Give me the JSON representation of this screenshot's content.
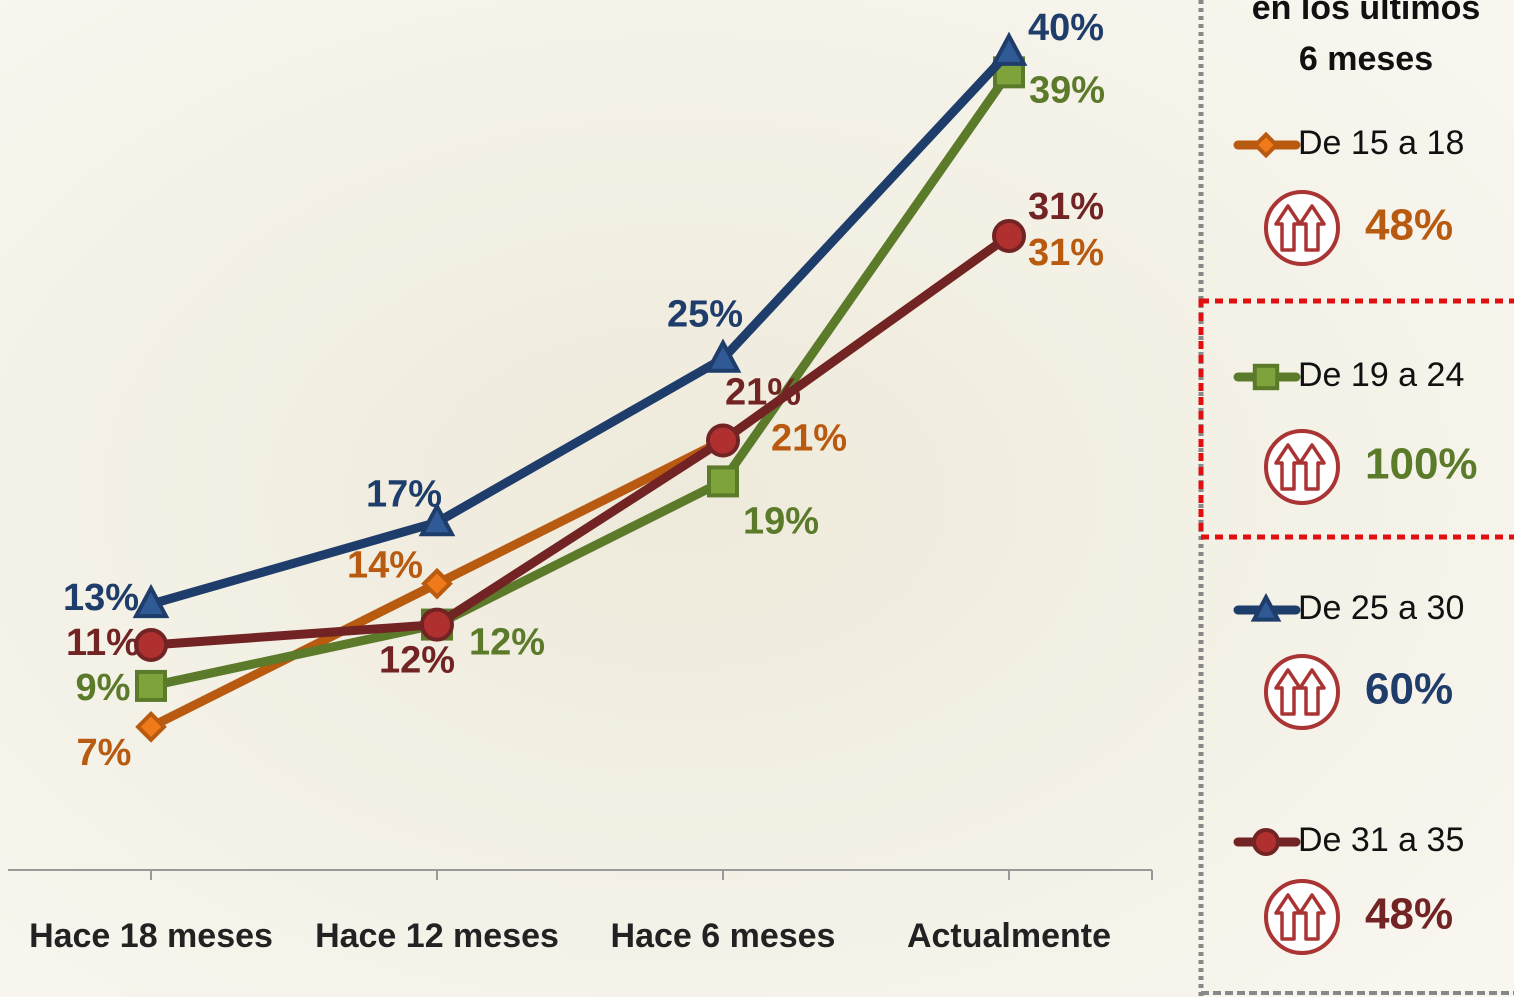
{
  "chart_data": {
    "type": "line",
    "categories": [
      "Hace 18 meses",
      "Hace 12 meses",
      "Hace 6 meses",
      "Actualmente"
    ],
    "ylim": [
      0,
      42
    ],
    "legend_title": [
      "en los últimos",
      "6 meses"
    ],
    "series": [
      {
        "name": "De 15 a 18",
        "color": "#b85a10",
        "marker": "diamond",
        "values": [
          7,
          14,
          21,
          31
        ],
        "value_labels": [
          "7%",
          "14%",
          "21%",
          "31%"
        ],
        "growth": 48,
        "growth_label": "48%"
      },
      {
        "name": "De 19 a 24",
        "color": "#5b7a2a",
        "marker": "square",
        "values": [
          9,
          12,
          19,
          39
        ],
        "value_labels": [
          "9%",
          "12%",
          "19%",
          "39%"
        ],
        "growth": 100,
        "growth_label": "100%"
      },
      {
        "name": "De 25 a 30",
        "color": "#1f3d6b",
        "marker": "triangle",
        "values": [
          13,
          17,
          25,
          40
        ],
        "value_labels": [
          "13%",
          "17%",
          "25%",
          "40%"
        ],
        "growth": 60,
        "growth_label": "60%"
      },
      {
        "name": "De 31 a 35",
        "color": "#722424",
        "marker": "circle",
        "values": [
          11,
          12,
          21,
          31
        ],
        "value_labels": [
          "11%",
          "12%",
          "21%",
          "31%"
        ],
        "growth": 48,
        "growth_label": "48%"
      }
    ]
  }
}
